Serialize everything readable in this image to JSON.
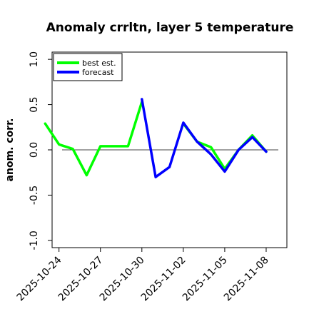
{
  "chart_data": {
    "type": "line",
    "title": "Anomaly crrltn, layer 5 temperature",
    "xlabel": "",
    "ylabel": "anom. corr.",
    "ylim": [
      -1.08,
      1.08
    ],
    "yticks": [
      "-1.0",
      "-0.5",
      "0.0",
      "0.5",
      "1.0"
    ],
    "ytick_values": [
      -1.0,
      -0.5,
      0.0,
      0.5,
      1.0
    ],
    "xticks": [
      "2025-10-24",
      "2025-10-27",
      "2025-10-30",
      "2025-11-02",
      "2025-11-05",
      "2025-11-08"
    ],
    "highlighted_xtick": "2025-10-30",
    "highlight_color": "#008000",
    "reference_line": 0.0,
    "legend_position": "top-left",
    "grid": false,
    "series": [
      {
        "name": "best est.",
        "color": "#00ff00",
        "x": [
          "2025-10-23",
          "2025-10-24",
          "2025-10-25",
          "2025-10-26",
          "2025-10-27",
          "2025-10-28",
          "2025-10-29",
          "2025-10-30"
        ],
        "values": [
          0.29,
          0.06,
          0.01,
          -0.28,
          0.04,
          0.04,
          0.04,
          0.53
        ]
      },
      {
        "name": "forecast",
        "color": "#0000ff",
        "x": [
          "2025-10-30",
          "2025-10-31",
          "2025-11-01",
          "2025-11-02",
          "2025-11-03",
          "2025-11-04",
          "2025-11-05",
          "2025-11-06",
          "2025-11-07",
          "2025-11-08"
        ],
        "values": [
          0.56,
          -0.3,
          -0.19,
          0.3,
          0.09,
          -0.05,
          -0.24,
          0.0,
          0.14,
          -0.02
        ]
      },
      {
        "name": "",
        "color": "#00ff00",
        "x": [
          "2025-11-02",
          "2025-11-03",
          "2025-11-04",
          "2025-11-05",
          "2025-11-06",
          "2025-11-07",
          "2025-11-08"
        ],
        "values": [
          0.29,
          0.09,
          0.03,
          -0.21,
          0.0,
          0.16,
          -0.02
        ]
      }
    ]
  }
}
